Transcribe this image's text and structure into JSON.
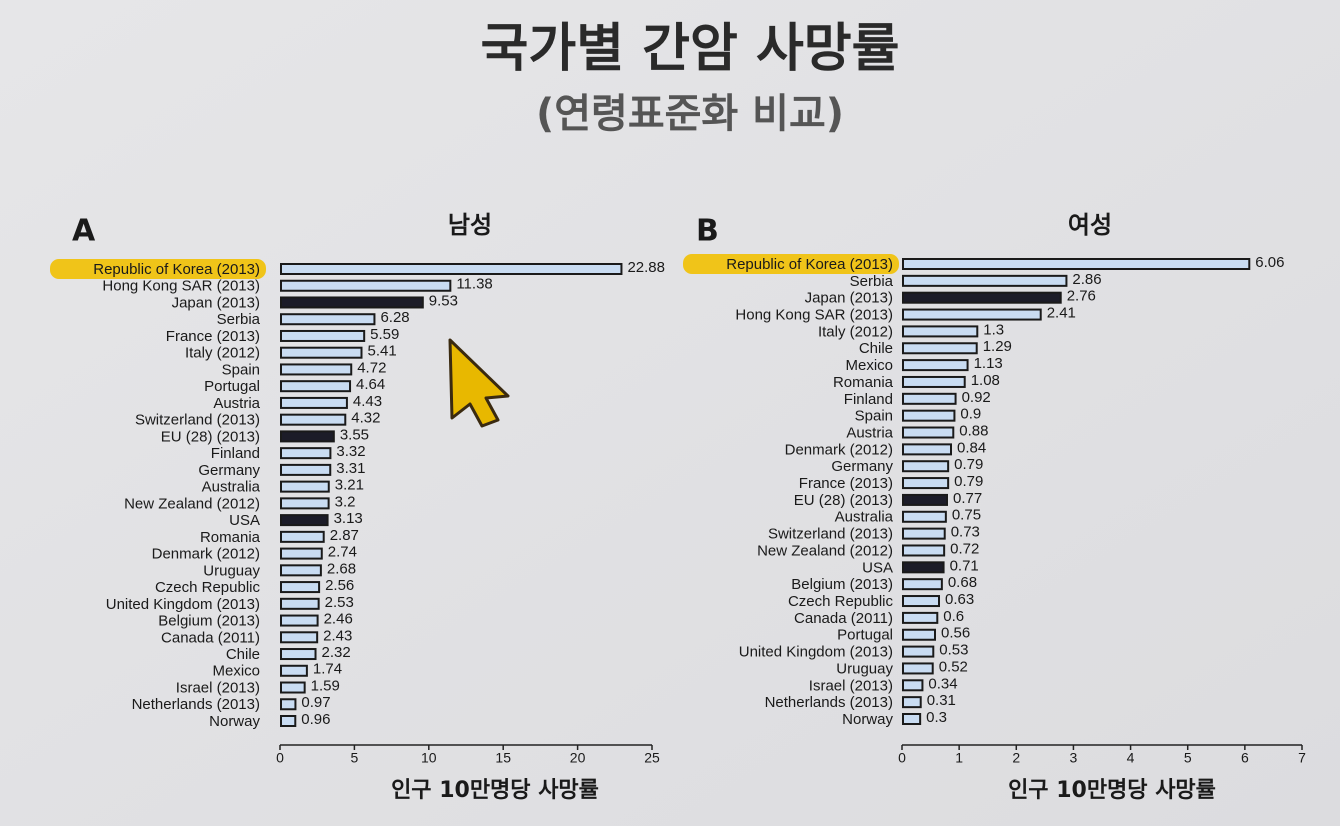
{
  "title": "국가별 간암 사망률",
  "subtitle": "(연령표준화 비교)",
  "chart_data": [
    {
      "type": "barh",
      "panel": "A",
      "title": "남성",
      "xlabel": "인구 10만명당 사망률",
      "categories": [
        "Republic of Korea (2013)",
        "Hong Kong SAR (2013)",
        "Japan (2013)",
        "Serbia",
        "France (2013)",
        "Italy (2012)",
        "Spain",
        "Portugal",
        "Austria",
        "Switzerland (2013)",
        "EU (28) (2013)",
        "Finland",
        "Germany",
        "Australia",
        "New Zealand (2012)",
        "USA",
        "Romania",
        "Denmark (2012)",
        "Uruguay",
        "Czech Republic",
        "United Kingdom (2013)",
        "Belgium (2013)",
        "Canada (2011)",
        "Chile",
        "Mexico",
        "Israel (2013)",
        "Netherlands (2013)",
        "Norway"
      ],
      "values": [
        22.88,
        11.38,
        9.53,
        6.28,
        5.59,
        5.41,
        4.72,
        4.64,
        4.43,
        4.32,
        3.55,
        3.32,
        3.31,
        3.21,
        3.2,
        3.13,
        2.87,
        2.74,
        2.68,
        2.56,
        2.53,
        2.46,
        2.43,
        2.32,
        1.74,
        1.59,
        0.97,
        0.96
      ],
      "colors": [
        "#c9dcf2",
        "#c9dcf2",
        "#1c1c28",
        "#c9dcf2",
        "#c9dcf2",
        "#c9dcf2",
        "#c9dcf2",
        "#c9dcf2",
        "#c9dcf2",
        "#c9dcf2",
        "#1c1c28",
        "#c9dcf2",
        "#c9dcf2",
        "#c9dcf2",
        "#c9dcf2",
        "#1c1c28",
        "#c9dcf2",
        "#c9dcf2",
        "#c9dcf2",
        "#c9dcf2",
        "#c9dcf2",
        "#c9dcf2",
        "#c9dcf2",
        "#c9dcf2",
        "#c9dcf2",
        "#c9dcf2",
        "#c9dcf2",
        "#c9dcf2"
      ],
      "highlight_index": 0,
      "highlight_color": "#f0c419",
      "xlim": [
        0,
        25
      ],
      "xticks": [
        0,
        5,
        10,
        15,
        20,
        25
      ]
    },
    {
      "type": "barh",
      "panel": "B",
      "title": "여성",
      "xlabel": "인구 10만명당 사망률",
      "categories": [
        "Republic of Korea (2013)",
        "Serbia",
        "Japan (2013)",
        "Hong Kong SAR (2013)",
        "Italy (2012)",
        "Chile",
        "Mexico",
        "Romania",
        "Finland",
        "Spain",
        "Austria",
        "Denmark (2012)",
        "Germany",
        "France (2013)",
        "EU (28) (2013)",
        "Australia",
        "Switzerland (2013)",
        "New Zealand (2012)",
        "USA",
        "Belgium (2013)",
        "Czech Republic",
        "Canada (2011)",
        "Portugal",
        "United Kingdom (2013)",
        "Uruguay",
        "Israel (2013)",
        "Netherlands (2013)",
        "Norway"
      ],
      "values": [
        6.06,
        2.86,
        2.76,
        2.41,
        1.3,
        1.29,
        1.13,
        1.08,
        0.92,
        0.9,
        0.88,
        0.84,
        0.79,
        0.79,
        0.77,
        0.75,
        0.73,
        0.72,
        0.71,
        0.68,
        0.63,
        0.6,
        0.56,
        0.53,
        0.52,
        0.34,
        0.31,
        0.3
      ],
      "colors": [
        "#c9dcf2",
        "#c9dcf2",
        "#1c1c28",
        "#c9dcf2",
        "#c9dcf2",
        "#c9dcf2",
        "#c9dcf2",
        "#c9dcf2",
        "#c9dcf2",
        "#c9dcf2",
        "#c9dcf2",
        "#c9dcf2",
        "#c9dcf2",
        "#c9dcf2",
        "#1c1c28",
        "#c9dcf2",
        "#c9dcf2",
        "#c9dcf2",
        "#1c1c28",
        "#c9dcf2",
        "#c9dcf2",
        "#c9dcf2",
        "#c9dcf2",
        "#c9dcf2",
        "#c9dcf2",
        "#c9dcf2",
        "#c9dcf2",
        "#c9dcf2"
      ],
      "highlight_index": 0,
      "highlight_color": "#f0c419",
      "xlim": [
        0,
        7
      ],
      "xticks": [
        0,
        1,
        2,
        3,
        4,
        5,
        6,
        7
      ]
    }
  ]
}
